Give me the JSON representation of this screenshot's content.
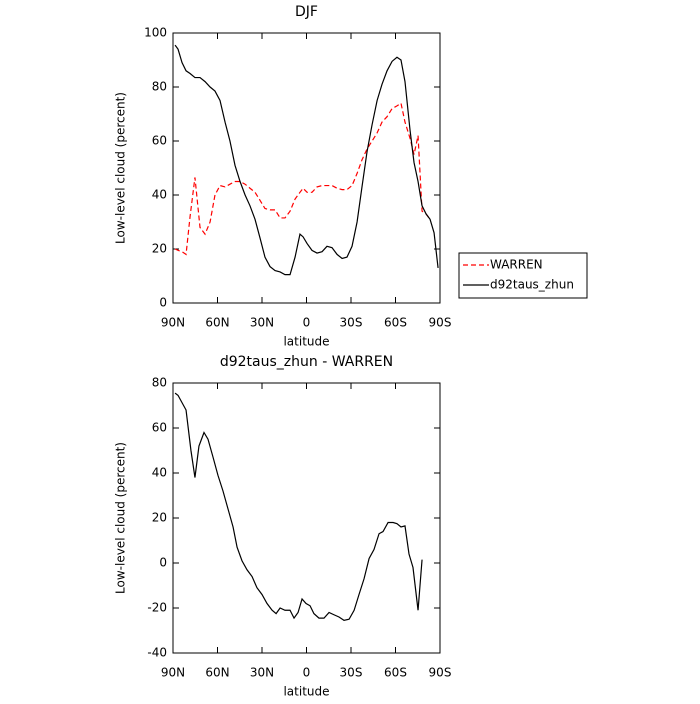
{
  "chart_data": [
    {
      "type": "line",
      "title": "DJF",
      "xlabel": "latitude",
      "ylabel": "Low-level cloud (percent)",
      "xlim": [
        90,
        -90
      ],
      "xticks": [
        {
          "value": 90,
          "label": "90N"
        },
        {
          "value": 60,
          "label": "60N"
        },
        {
          "value": 30,
          "label": "30N"
        },
        0,
        {
          "value": -30,
          "label": "30S"
        },
        {
          "value": -60,
          "label": "60S"
        },
        {
          "value": -90,
          "label": "90S"
        }
      ],
      "ylim": [
        0,
        100
      ],
      "yticks": [
        0,
        20,
        40,
        60,
        80,
        100
      ],
      "legend": "right",
      "x": [
        88.6,
        86.6,
        83.9,
        81.2,
        78.5,
        75.2,
        71.8,
        68.4,
        65,
        61.7,
        58.3,
        54.9,
        51.6,
        48.2,
        44.8,
        41.4,
        38.1,
        34.7,
        31.3,
        28,
        24.6,
        21.2,
        17.8,
        14.5,
        11.1,
        7.7,
        4.4,
        2.3,
        -0.4,
        -3.7,
        -7.1,
        -10.5,
        -13.8,
        -17.2,
        -20.6,
        -24,
        -27.3,
        -30.7,
        -34.1,
        -37.4,
        -40.8,
        -44.2,
        -47.6,
        -50.9,
        -54.3,
        -57.7,
        -61,
        -63.7,
        -66.4,
        -69.8,
        -72.5,
        -75.2,
        -77.9,
        -80.6,
        -83.3,
        -86,
        -88.7
      ],
      "series": [
        {
          "name": "WARREN",
          "color": "#ff0000",
          "dash": "dashed",
          "values": [
            20,
            19.5,
            19,
            18,
            32,
            46.5,
            28,
            25.5,
            30,
            40,
            43.5,
            43,
            44,
            45,
            45,
            44,
            42.5,
            41,
            38,
            35,
            34.5,
            34.5,
            31.5,
            31.5,
            34,
            38.5,
            41,
            42.5,
            41,
            41,
            43,
            43.5,
            43.5,
            43.5,
            42.5,
            42,
            42,
            43.5,
            48,
            53,
            57,
            60,
            63,
            67,
            69,
            72,
            73,
            74,
            67,
            61,
            55,
            62,
            34,
            33,
            31,
            null,
            null
          ]
        },
        {
          "name": "d92taus_zhun",
          "color": "#000000",
          "dash": "solid",
          "values": [
            95.5,
            94,
            89,
            86,
            85,
            83.5,
            83.5,
            82,
            80,
            78.5,
            75,
            67,
            60,
            51,
            45,
            40,
            36,
            31,
            24,
            17,
            13.5,
            12,
            11.5,
            10.5,
            10.5,
            17,
            25.5,
            24.5,
            22,
            19.5,
            18.5,
            19,
            21,
            20.5,
            18,
            16.5,
            17,
            21,
            30,
            43,
            56,
            66,
            75,
            81,
            86,
            89.5,
            91,
            90,
            82,
            64,
            52,
            45,
            36,
            33,
            31,
            26,
            13
          ]
        }
      ]
    },
    {
      "type": "line",
      "title": "d92taus_zhun - WARREN",
      "xlabel": "latitude",
      "ylabel": "Low-level cloud (percent)",
      "xlim": [
        90,
        -90
      ],
      "xticks": [
        {
          "value": 90,
          "label": "90N"
        },
        {
          "value": 60,
          "label": "60N"
        },
        {
          "value": 30,
          "label": "30N"
        },
        0,
        {
          "value": -30,
          "label": "30S"
        },
        {
          "value": -60,
          "label": "60S"
        },
        {
          "value": -90,
          "label": "90S"
        }
      ],
      "ylim": [
        -40,
        80
      ],
      "yticks": [
        -40,
        -20,
        0,
        20,
        40,
        60,
        80
      ],
      "x": [
        88.6,
        86.6,
        81.2,
        77.9,
        75.2,
        72.5,
        69.1,
        66.4,
        63,
        59.7,
        56.3,
        52.9,
        49.5,
        46.8,
        43.5,
        40.1,
        36.7,
        33.4,
        30,
        26.6,
        23.2,
        20.5,
        17.8,
        14.5,
        11.1,
        8.4,
        5.7,
        3,
        0.3,
        -2.4,
        -5,
        -8.4,
        -11.8,
        -15.2,
        -18.5,
        -21.9,
        -25.3,
        -28.7,
        -32.1,
        -35.4,
        -38.8,
        -42.2,
        -45.5,
        -48.9,
        -51.6,
        -55,
        -58.4,
        -61,
        -63.7,
        -66.4,
        -69.1,
        -71.8,
        -75.2,
        -77.9
      ],
      "series": [
        {
          "color": "#000000",
          "dash": "solid",
          "values": [
            75.5,
            74.5,
            68,
            50,
            38,
            52,
            58,
            55,
            47,
            39,
            32,
            24,
            16,
            7,
            1,
            -3,
            -6,
            -11,
            -14,
            -18,
            -21,
            -22.5,
            -20,
            -21,
            -21,
            -24.5,
            -22,
            -16,
            -18,
            -19,
            -22.5,
            -24.5,
            -24.5,
            -22,
            -23,
            -24,
            -25.5,
            -25,
            -21,
            -14,
            -7,
            2,
            6,
            13,
            14,
            18,
            18,
            17.5,
            16,
            16.5,
            4,
            -2,
            -21,
            1.5
          ]
        }
      ]
    }
  ]
}
